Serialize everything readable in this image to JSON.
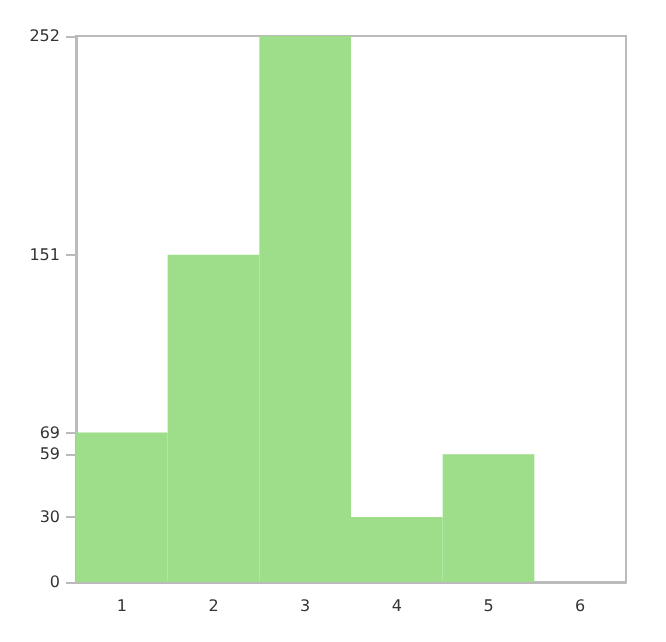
{
  "chart_data": {
    "type": "bar",
    "categories": [
      "1",
      "2",
      "3",
      "4",
      "5",
      "6"
    ],
    "values": [
      69,
      151,
      252,
      30,
      59,
      0
    ],
    "color": "#9ede8a",
    "ylim": [
      0,
      252
    ],
    "yticks": [
      0,
      30,
      59,
      69,
      151,
      252
    ],
    "grid": false
  }
}
